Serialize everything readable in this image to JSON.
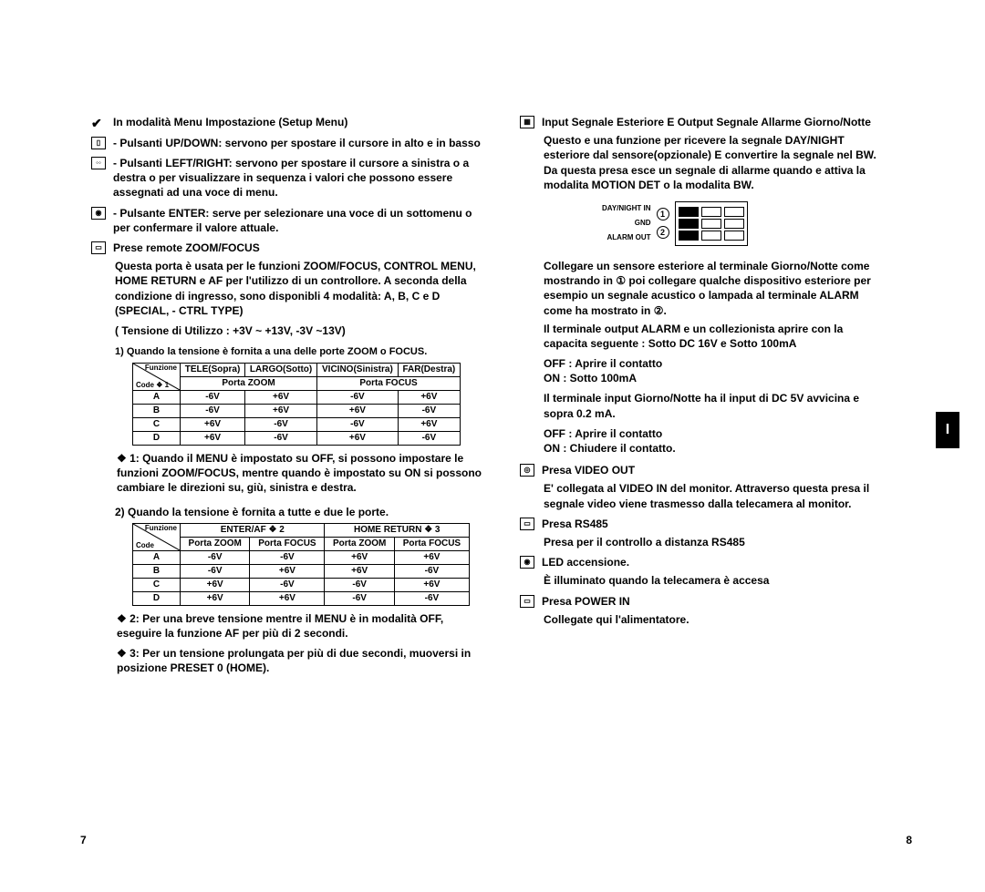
{
  "left": {
    "setup_heading": "In modalità Menu Impostazione (Setup Menu)",
    "updown": "Pulsanti UP/DOWN: servono per spostare il cursore in alto e in basso",
    "leftright": "Pulsanti LEFT/RIGHT: servono per spostare il cursore a sinistra o a destra o per visualizzare in sequenza i valori che possono essere assegnati ad una voce di menu.",
    "enter": "Pulsante ENTER: serve per selezionare una voce di un sottomenu o per confermare il valore attuale.",
    "zoom_heading": "Prese remote ZOOM/FOCUS",
    "zoom_desc": "Questa porta è usata per le funzioni ZOOM/FOCUS, CONTROL MENU, HOME RETURN e AF per l'utilizzo di un controllore. A seconda della condizione di ingresso, sono disponibli 4 modalità: A, B, C e D (SPECIAL, - CTRL TYPE)",
    "voltage_line": "( Tensione di Utilizzo : +3V ~ +13V, -3V ~13V)",
    "case1": "1) Quando la tensione è fornita a una delle porte ZOOM o FOCUS.",
    "table1": {
      "diag_top": "Funzione",
      "diag_bot": "Code",
      "headers": [
        "TELE(Sopra)",
        "LARGO(Sotto)",
        "VICINO(Sinistra)",
        "FAR(Destra)"
      ],
      "sub": [
        "Porta ZOOM",
        "Porta FOCUS"
      ],
      "rows": [
        [
          "A",
          "-6V",
          "+6V",
          "-6V",
          "+6V"
        ],
        [
          "B",
          "-6V",
          "+6V",
          "+6V",
          "-6V"
        ],
        [
          "C",
          "+6V",
          "-6V",
          "-6V",
          "+6V"
        ],
        [
          "D",
          "+6V",
          "-6V",
          "+6V",
          "-6V"
        ]
      ]
    },
    "note1": "❖ 1: Quando il MENU è impostato su OFF, si possono impostare le funzioni ZOOM/FOCUS, mentre quando è impostato su ON si possono cambiare le direzioni su, giù, sinistra e destra.",
    "case2": "2) Quando la tensione è fornita a tutte e due le porte.",
    "table2": {
      "diag_top": "Funzione",
      "diag_bot": "Code",
      "headers": [
        "ENTER/AF ❖ 2",
        "HOME RETURN ❖ 3"
      ],
      "sub": [
        "Porta ZOOM",
        "Porta FOCUS",
        "Porta ZOOM",
        "Porta FOCUS"
      ],
      "rows": [
        [
          "A",
          "-6V",
          "-6V",
          "+6V",
          "+6V"
        ],
        [
          "B",
          "-6V",
          "+6V",
          "+6V",
          "-6V"
        ],
        [
          "C",
          "+6V",
          "-6V",
          "-6V",
          "+6V"
        ],
        [
          "D",
          "+6V",
          "+6V",
          "-6V",
          "-6V"
        ]
      ]
    },
    "note2": "❖ 2: Per una breve tensione mentre il MENU è in modalità OFF, eseguire la funzione AF per più di 2 secondi.",
    "note3": "❖ 3: Per un tensione prolungata per più di due secondi, muoversi in posizione PRESET 0 (HOME).",
    "pagenum": "7"
  },
  "right": {
    "sig_heading": "Input Segnale Esteriore E Output Segnale Allarme Giorno/Notte",
    "sig_desc": "Questo e una funzione per ricevere la segnale DAY/NIGHT esteriore dal sensore(opzionale) E convertire la segnale nel BW. Da questa presa esce un segnale di allarme quando e attiva la modalita MOTION DET o la modalita BW.",
    "term_labels": {
      "1": "DAY/NIGHT IN",
      "2": "GND",
      "3": "ALARM OUT"
    },
    "para2": "Collegare un sensore esteriore al terminale Giorno/Notte come mostrando in ① poi collegare qualche dispositivo esteriore per esempio un segnale acustico o lampada al terminale ALARM come ha mostrato in ②.",
    "para3": "Il terminale output ALARM e un collezionista aprire con la capacita seguente : Sotto DC 16V e Sotto 100mA",
    "off1": "OFF : Aprire il contatto",
    "on1": "ON : Sotto 100mA",
    "para4": "Il terminale input Giorno/Notte ha il input di DC 5V avvicina e sopra 0.2 mA.",
    "off2": "OFF : Aprire il contatto",
    "on2": "ON : Chiudere il contatto.",
    "video_h": "Presa VIDEO OUT",
    "video_d": "E' collegata al VIDEO IN del monitor. Attraverso questa presa il segnale video viene trasmesso dalla telecamera al monitor.",
    "rs485_h": "Presa RS485",
    "rs485_d": "Presa per il controllo a distanza RS485",
    "led_h": "LED accensione.",
    "led_d": "È illuminato quando la telecamera è accesa",
    "power_h": "Presa POWER IN",
    "power_d": "Collegate qui l'alimentatore.",
    "pagenum": "8",
    "tab": "I"
  }
}
